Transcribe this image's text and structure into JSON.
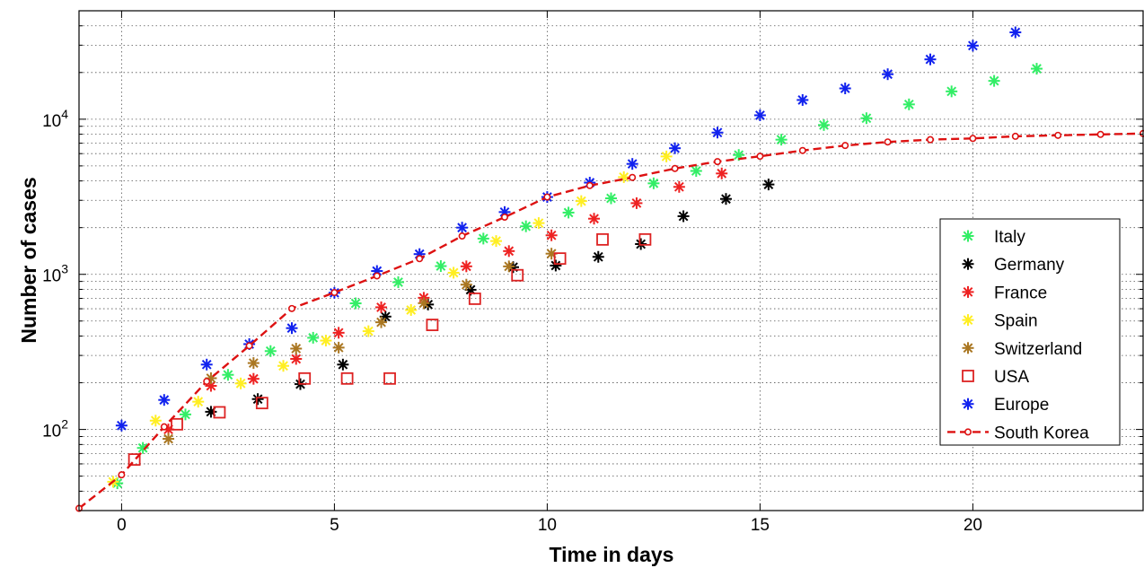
{
  "chart_data": {
    "type": "scatter",
    "xlabel": "Time in days",
    "ylabel": "Number of cases",
    "xlim": [
      -1,
      24
    ],
    "ylim": [
      30,
      50000
    ],
    "y_scale": "log",
    "x_ticks": [
      0,
      5,
      10,
      15,
      20
    ],
    "y_ticks": [
      {
        "value": 100,
        "base": "10",
        "exp": "2"
      },
      {
        "value": 1000,
        "base": "10",
        "exp": "3"
      },
      {
        "value": 10000,
        "base": "10",
        "exp": "4"
      }
    ],
    "grid": true,
    "legend_position": "right",
    "series": [
      {
        "name": "Italy",
        "color": "#33ee66",
        "marker": "asterisk",
        "points": [
          [
            -0.1,
            45
          ],
          [
            0.5,
            76
          ],
          [
            1.5,
            125
          ],
          [
            2.5,
            225
          ],
          [
            3.5,
            320
          ],
          [
            4.5,
            390
          ],
          [
            5.5,
            650
          ],
          [
            6.5,
            890
          ],
          [
            7.5,
            1130
          ],
          [
            8.5,
            1700
          ],
          [
            9.5,
            2040
          ],
          [
            10.5,
            2500
          ],
          [
            11.5,
            3090
          ],
          [
            12.5,
            3860
          ],
          [
            13.5,
            4640
          ],
          [
            14.5,
            5880
          ],
          [
            15.5,
            7380
          ],
          [
            16.5,
            9170
          ],
          [
            17.5,
            10150
          ],
          [
            18.5,
            12460
          ],
          [
            19.5,
            15110
          ],
          [
            20.5,
            17660
          ],
          [
            21.5,
            21160
          ]
        ]
      },
      {
        "name": "Germany",
        "color": "#000000",
        "marker": "asterisk",
        "points": [
          [
            2.1,
            130
          ],
          [
            3.2,
            157
          ],
          [
            4.2,
            196
          ],
          [
            5.2,
            262
          ],
          [
            6.2,
            534
          ],
          [
            7.2,
            639
          ],
          [
            8.2,
            795
          ],
          [
            9.2,
            1112
          ],
          [
            10.2,
            1139
          ],
          [
            11.2,
            1296
          ],
          [
            12.2,
            1567
          ],
          [
            13.2,
            2369
          ],
          [
            14.2,
            3062
          ],
          [
            15.2,
            3795
          ]
        ]
      },
      {
        "name": "France",
        "color": "#ee2222",
        "marker": "asterisk",
        "points": [
          [
            1.1,
            100
          ],
          [
            2.1,
            191
          ],
          [
            3.1,
            212
          ],
          [
            4.1,
            285
          ],
          [
            5.1,
            420
          ],
          [
            6.1,
            613
          ],
          [
            7.1,
            706
          ],
          [
            8.1,
            1126
          ],
          [
            9.1,
            1412
          ],
          [
            10.1,
            1784
          ],
          [
            11.1,
            2284
          ],
          [
            12.1,
            2876
          ],
          [
            13.1,
            3661
          ],
          [
            14.1,
            4469
          ]
        ]
      },
      {
        "name": "Spain",
        "color": "#ffee22",
        "marker": "asterisk",
        "points": [
          [
            -0.2,
            46
          ],
          [
            0.8,
            114
          ],
          [
            1.8,
            151
          ],
          [
            2.8,
            198
          ],
          [
            3.8,
            257
          ],
          [
            4.8,
            374
          ],
          [
            5.8,
            430
          ],
          [
            6.8,
            589
          ],
          [
            7.8,
            1024
          ],
          [
            8.8,
            1639
          ],
          [
            9.8,
            2140
          ],
          [
            10.8,
            2965
          ],
          [
            11.8,
            4231
          ],
          [
            12.8,
            5753
          ]
        ]
      },
      {
        "name": "Switzerland",
        "color": "#aa7722",
        "marker": "asterisk",
        "points": [
          [
            1.1,
            87
          ],
          [
            2.1,
            214
          ],
          [
            3.1,
            268
          ],
          [
            4.1,
            332
          ],
          [
            5.1,
            337
          ],
          [
            6.1,
            491
          ],
          [
            7.1,
            652
          ],
          [
            8.1,
            858
          ],
          [
            9.1,
            1125
          ],
          [
            10.1,
            1359
          ]
        ]
      },
      {
        "name": "USA",
        "color": "#dd2222",
        "marker": "square",
        "points": [
          [
            0.3,
            64
          ],
          [
            1.3,
            108
          ],
          [
            2.3,
            129
          ],
          [
            3.3,
            148
          ],
          [
            4.3,
            213
          ],
          [
            5.3,
            213
          ],
          [
            6.3,
            213
          ],
          [
            7.3,
            472
          ],
          [
            8.3,
            696
          ],
          [
            9.3,
            987
          ],
          [
            10.3,
            1264
          ],
          [
            11.3,
            1678
          ],
          [
            12.3,
            1678
          ]
        ]
      },
      {
        "name": "Europe",
        "color": "#1122ee",
        "marker": "asterisk",
        "points": [
          [
            0,
            106
          ],
          [
            1,
            155
          ],
          [
            2,
            262
          ],
          [
            3,
            355
          ],
          [
            4,
            450
          ],
          [
            5,
            760
          ],
          [
            6,
            1050
          ],
          [
            7,
            1350
          ],
          [
            8,
            2000
          ],
          [
            9,
            2520
          ],
          [
            10,
            3150
          ],
          [
            11,
            3900
          ],
          [
            12,
            5150
          ],
          [
            13,
            6500
          ],
          [
            14,
            8200
          ],
          [
            15,
            10600
          ],
          [
            16,
            13300
          ],
          [
            17,
            15800
          ],
          [
            18,
            19500
          ],
          [
            19,
            24300
          ],
          [
            20,
            29800
          ],
          [
            21,
            36300
          ]
        ]
      },
      {
        "name": "South Korea",
        "color": "#dd1111",
        "marker": "circle-dashed-line",
        "points": [
          [
            -1,
            31
          ],
          [
            0,
            51
          ],
          [
            1,
            104
          ],
          [
            2,
            204
          ],
          [
            3,
            346
          ],
          [
            4,
            602
          ],
          [
            5,
            763
          ],
          [
            6,
            977
          ],
          [
            7,
            1261
          ],
          [
            8,
            1766
          ],
          [
            9,
            2337
          ],
          [
            10,
            3150
          ],
          [
            11,
            3736
          ],
          [
            12,
            4212
          ],
          [
            13,
            4812
          ],
          [
            14,
            5328
          ],
          [
            15,
            5766
          ],
          [
            16,
            6284
          ],
          [
            17,
            6767
          ],
          [
            18,
            7134
          ],
          [
            19,
            7382
          ],
          [
            20,
            7513
          ],
          [
            21,
            7755
          ],
          [
            22,
            7869
          ],
          [
            23,
            7979
          ],
          [
            24,
            8086
          ]
        ]
      }
    ]
  }
}
